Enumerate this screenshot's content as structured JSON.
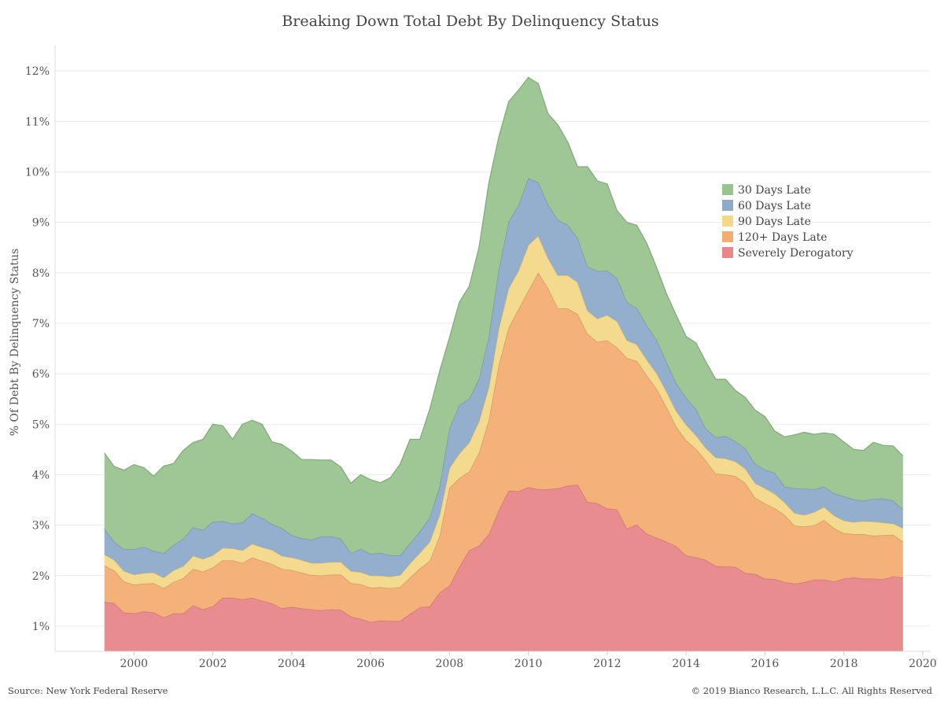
{
  "chart_data": {
    "type": "area",
    "stacked": true,
    "title": "Breaking Down Total Debt By Delinquency Status",
    "ylabel": "% Of Debt By Delinquency Status",
    "xlabel": "",
    "xlim": [
      1998.0,
      2020.2
    ],
    "ylim": [
      0.5,
      12.5
    ],
    "x_ticks": [
      2000,
      2002,
      2004,
      2006,
      2008,
      2010,
      2012,
      2014,
      2016,
      2018,
      2020
    ],
    "y_ticks": [
      1,
      2,
      3,
      4,
      5,
      6,
      7,
      8,
      9,
      10,
      11,
      12
    ],
    "y_tick_labels": [
      "1%",
      "2%",
      "3%",
      "4%",
      "5%",
      "6%",
      "7%",
      "8%",
      "9%",
      "10%",
      "11%",
      "12%"
    ],
    "grid": true,
    "legend_position": "right",
    "x": [
      1999.25,
      1999.5,
      1999.75,
      2000.0,
      2000.25,
      2000.5,
      2000.75,
      2001.0,
      2001.25,
      2001.5,
      2001.75,
      2002.0,
      2002.25,
      2002.5,
      2002.75,
      2003.0,
      2003.25,
      2003.5,
      2003.75,
      2004.0,
      2004.25,
      2004.5,
      2004.75,
      2005.0,
      2005.25,
      2005.5,
      2005.75,
      2006.0,
      2006.25,
      2006.5,
      2006.75,
      2007.0,
      2007.25,
      2007.5,
      2007.75,
      2008.0,
      2008.25,
      2008.5,
      2008.75,
      2009.0,
      2009.25,
      2009.5,
      2009.75,
      2010.0,
      2010.25,
      2010.5,
      2010.75,
      2011.0,
      2011.25,
      2011.5,
      2011.75,
      2012.0,
      2012.25,
      2012.5,
      2012.75,
      2013.0,
      2013.25,
      2013.5,
      2013.75,
      2014.0,
      2014.25,
      2014.5,
      2014.75,
      2015.0,
      2015.25,
      2015.5,
      2015.75,
      2016.0,
      2016.25,
      2016.5,
      2016.75,
      2017.0,
      2017.25,
      2017.5,
      2017.75,
      2018.0,
      2018.25,
      2018.5,
      2018.75,
      2019.0,
      2019.25,
      2019.5
    ],
    "series": [
      {
        "name": "Severely Derogatory",
        "color": "#e8868a",
        "values": [
          1.48,
          1.45,
          1.27,
          1.25,
          1.29,
          1.27,
          1.17,
          1.25,
          1.25,
          1.41,
          1.33,
          1.39,
          1.56,
          1.56,
          1.53,
          1.56,
          1.5,
          1.45,
          1.35,
          1.38,
          1.35,
          1.33,
          1.31,
          1.33,
          1.32,
          1.19,
          1.14,
          1.08,
          1.11,
          1.1,
          1.1,
          1.24,
          1.37,
          1.39,
          1.66,
          1.8,
          2.17,
          2.5,
          2.59,
          2.82,
          3.29,
          3.68,
          3.67,
          3.75,
          3.71,
          3.71,
          3.73,
          3.78,
          3.8,
          3.46,
          3.43,
          3.33,
          3.31,
          2.93,
          3.01,
          2.83,
          2.75,
          2.67,
          2.58,
          2.4,
          2.36,
          2.31,
          2.19,
          2.18,
          2.17,
          2.05,
          2.03,
          1.94,
          1.93,
          1.87,
          1.84,
          1.87,
          1.92,
          1.92,
          1.88,
          1.94,
          1.96,
          1.94,
          1.94,
          1.93,
          1.98,
          1.96
        ]
      },
      {
        "name": "120+ Days Late",
        "color": "#f3ad72",
        "values": [
          0.72,
          0.65,
          0.61,
          0.57,
          0.55,
          0.58,
          0.58,
          0.62,
          0.7,
          0.72,
          0.75,
          0.77,
          0.74,
          0.74,
          0.72,
          0.8,
          0.79,
          0.78,
          0.78,
          0.73,
          0.71,
          0.68,
          0.69,
          0.69,
          0.7,
          0.66,
          0.69,
          0.68,
          0.66,
          0.65,
          0.67,
          0.72,
          0.77,
          0.9,
          1.12,
          1.94,
          1.76,
          1.56,
          1.85,
          2.27,
          2.88,
          3.23,
          3.61,
          3.89,
          4.29,
          3.98,
          3.56,
          3.51,
          3.38,
          3.33,
          3.2,
          3.33,
          3.21,
          3.38,
          3.24,
          3.14,
          2.95,
          2.67,
          2.37,
          2.28,
          2.15,
          1.97,
          1.83,
          1.82,
          1.8,
          1.78,
          1.51,
          1.49,
          1.4,
          1.33,
          1.15,
          1.1,
          1.08,
          1.18,
          1.06,
          0.9,
          0.86,
          0.88,
          0.85,
          0.87,
          0.83,
          0.71
        ]
      },
      {
        "name": "90 Days Late",
        "color": "#f2d888",
        "values": [
          0.22,
          0.21,
          0.21,
          0.2,
          0.21,
          0.21,
          0.21,
          0.23,
          0.24,
          0.26,
          0.25,
          0.24,
          0.25,
          0.24,
          0.25,
          0.27,
          0.27,
          0.28,
          0.26,
          0.25,
          0.25,
          0.24,
          0.25,
          0.25,
          0.25,
          0.24,
          0.24,
          0.24,
          0.23,
          0.23,
          0.24,
          0.28,
          0.31,
          0.38,
          0.42,
          0.39,
          0.49,
          0.57,
          0.62,
          0.65,
          0.72,
          0.78,
          0.76,
          0.91,
          0.73,
          0.6,
          0.66,
          0.66,
          0.63,
          0.46,
          0.46,
          0.5,
          0.52,
          0.35,
          0.33,
          0.31,
          0.31,
          0.31,
          0.31,
          0.31,
          0.27,
          0.25,
          0.32,
          0.32,
          0.29,
          0.29,
          0.29,
          0.3,
          0.29,
          0.25,
          0.25,
          0.23,
          0.26,
          0.26,
          0.25,
          0.25,
          0.24,
          0.26,
          0.28,
          0.25,
          0.22,
          0.27
        ]
      },
      {
        "name": "60 Days Late",
        "color": "#8eaacb",
        "values": [
          0.51,
          0.36,
          0.43,
          0.5,
          0.52,
          0.43,
          0.48,
          0.5,
          0.54,
          0.57,
          0.57,
          0.67,
          0.53,
          0.49,
          0.55,
          0.6,
          0.58,
          0.51,
          0.55,
          0.44,
          0.43,
          0.46,
          0.52,
          0.51,
          0.46,
          0.35,
          0.46,
          0.43,
          0.45,
          0.42,
          0.39,
          0.4,
          0.42,
          0.48,
          0.56,
          0.79,
          0.96,
          0.87,
          0.84,
          1.0,
          1.17,
          1.32,
          1.3,
          1.32,
          1.06,
          1.06,
          1.1,
          0.99,
          0.88,
          0.87,
          0.94,
          0.88,
          0.85,
          0.76,
          0.72,
          0.68,
          0.66,
          0.59,
          0.55,
          0.53,
          0.52,
          0.38,
          0.4,
          0.44,
          0.4,
          0.4,
          0.38,
          0.37,
          0.41,
          0.31,
          0.49,
          0.52,
          0.45,
          0.4,
          0.44,
          0.48,
          0.45,
          0.4,
          0.45,
          0.48,
          0.45,
          0.37
        ]
      },
      {
        "name": "30 Days Late",
        "color": "#99c48f",
        "values": [
          1.5,
          1.49,
          1.57,
          1.68,
          1.57,
          1.48,
          1.73,
          1.62,
          1.75,
          1.68,
          1.8,
          1.93,
          1.89,
          1.67,
          1.95,
          1.85,
          1.86,
          1.63,
          1.66,
          1.67,
          1.56,
          1.59,
          1.52,
          1.51,
          1.42,
          1.39,
          1.47,
          1.47,
          1.39,
          1.54,
          1.81,
          2.06,
          1.83,
          2.15,
          2.29,
          1.8,
          2.04,
          2.23,
          2.61,
          3.05,
          2.63,
          2.38,
          2.28,
          2.0,
          1.96,
          1.8,
          1.88,
          1.65,
          1.41,
          1.98,
          1.79,
          1.72,
          1.34,
          1.58,
          1.64,
          1.63,
          1.44,
          1.35,
          1.35,
          1.22,
          1.31,
          1.33,
          1.15,
          1.13,
          1.01,
          1.01,
          1.07,
          1.05,
          0.83,
          0.99,
          1.06,
          1.12,
          1.09,
          1.07,
          1.17,
          1.08,
          0.99,
          1.0,
          1.12,
          1.05,
          1.09,
          1.06
        ]
      }
    ]
  },
  "footer": {
    "source": "Source: New York Federal Reserve",
    "copyright": "© 2019 Bianco Research, L.L.C. All Rights Reserved"
  }
}
